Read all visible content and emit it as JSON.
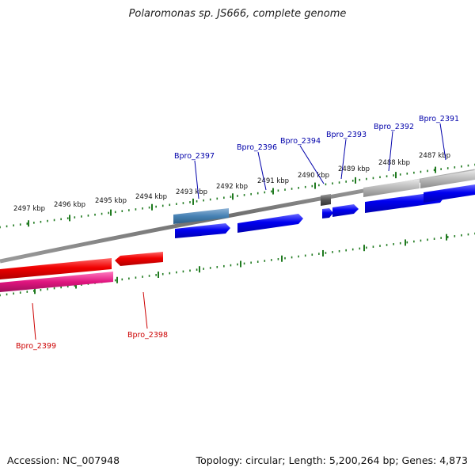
{
  "title": "Polaromonas sp. JS666, complete genome",
  "footer": {
    "accession": "Accession: NC_007948",
    "stats": "Topology: circular; Length: 5,200,264 bp; Genes: 4,873"
  },
  "scale_labels": [
    "2497 kbp",
    "2496 kbp",
    "2495 kbp",
    "2494 kbp",
    "2493 kbp",
    "2492 kbp",
    "2491 kbp",
    "2490 kbp",
    "2489 kbp",
    "2488 kbp",
    "2487 kbp"
  ],
  "gene_labels": [
    {
      "text": "Bpro_2391",
      "strand": "forward"
    },
    {
      "text": "Bpro_2392",
      "strand": "forward"
    },
    {
      "text": "Bpro_2393",
      "strand": "forward"
    },
    {
      "text": "Bpro_2394",
      "strand": "forward"
    },
    {
      "text": "Bpro_2396",
      "strand": "forward"
    },
    {
      "text": "Bpro_2397",
      "strand": "forward"
    },
    {
      "text": "Bpro_2398",
      "strand": "reverse"
    },
    {
      "text": "Bpro_2399",
      "strand": "reverse"
    }
  ],
  "colors": {
    "backbone": "#7a7a7a",
    "tick": "#1f7a1f",
    "forward_label": "#0000aa",
    "reverse_label": "#cc0000",
    "forward_gene": "#0000ee",
    "forward_feature": "#4682b4",
    "reverse_gene": "#ee0000",
    "reverse_feature": "#e0157f",
    "grey_feature": "#aaaaaa",
    "dark_feature": "#555555"
  }
}
